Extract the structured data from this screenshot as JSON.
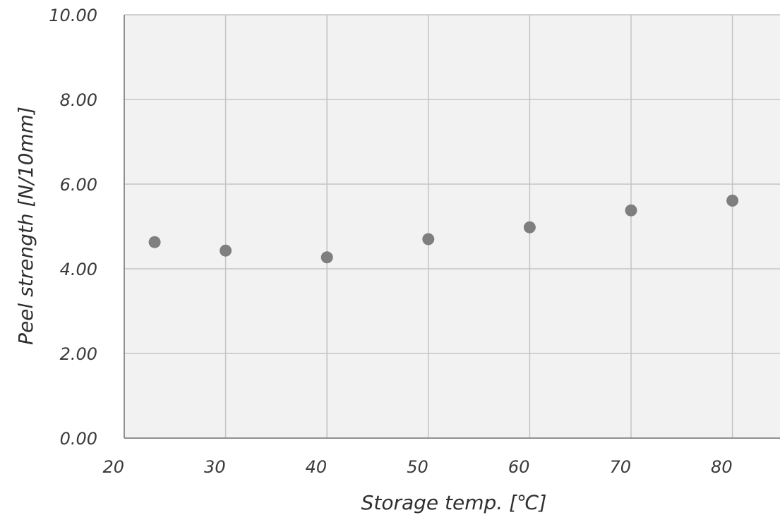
{
  "chart_data": {
    "type": "scatter",
    "xlabel": "Storage temp. [℃]",
    "ylabel": "Peel strength [N/10mm]",
    "xlim": [
      20,
      85
    ],
    "ylim": [
      0,
      10
    ],
    "x_ticks": [
      20,
      30,
      40,
      50,
      60,
      70,
      80
    ],
    "y_ticks": [
      "0.00",
      "2.00",
      "4.00",
      "6.00",
      "8.00",
      "10.00"
    ],
    "grid": true,
    "point_color": "#7f7f7f",
    "points": [
      {
        "x": 23,
        "y": 4.63
      },
      {
        "x": 30,
        "y": 4.43
      },
      {
        "x": 40,
        "y": 4.27
      },
      {
        "x": 50,
        "y": 4.7
      },
      {
        "x": 60,
        "y": 4.98
      },
      {
        "x": 70,
        "y": 5.38
      },
      {
        "x": 80,
        "y": 5.61
      }
    ]
  }
}
